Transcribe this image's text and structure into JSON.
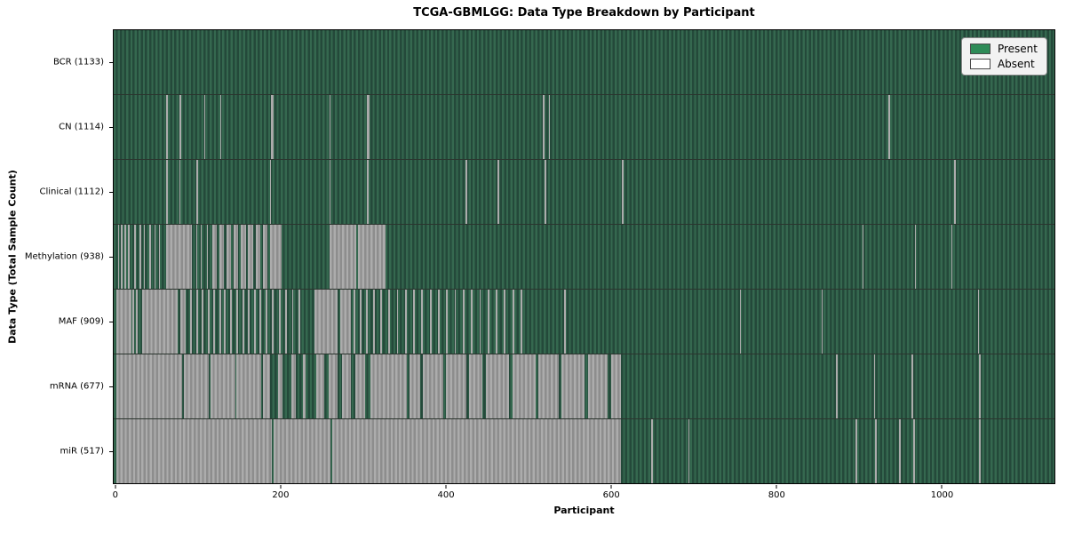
{
  "title": "TCGA-GBMLGG: Data Type Breakdown by Participant",
  "chart_data": {
    "type": "heatmap",
    "title": "TCGA-GBMLGG: Data Type Breakdown by Participant",
    "xlabel": "Participant",
    "ylabel": "Data Type (Total Sample Count)",
    "x_ticks": [
      0,
      200,
      400,
      600,
      800,
      1000
    ],
    "x_offset": 3,
    "x_domain_size": 1140,
    "n_participants": 1133,
    "grid": false,
    "legend_position": "upper right",
    "legend": [
      {
        "label": "Present",
        "color": "#2e8b57"
      },
      {
        "label": "Absent",
        "color": "#ffffff"
      }
    ],
    "colors": {
      "present_fill": "#2e8b57",
      "absent_fill": "#ffffff",
      "green_light": "#35684f",
      "green_dark": "#24493a",
      "gray_light": "#acacac",
      "gray_dark": "#8d8d8d",
      "legend_bg": "#f2f2f2"
    },
    "rows": [
      {
        "name": "bcr",
        "label": "BCR (1133)",
        "count": 1133,
        "absent": []
      },
      {
        "name": "cn",
        "label": "CN (1114)",
        "count": 1114,
        "absent": [
          [
            61,
            63
          ],
          [
            77,
            79
          ],
          [
            107,
            108
          ],
          [
            126,
            127
          ],
          [
            188,
            191
          ],
          [
            259,
            260
          ],
          [
            304,
            307
          ],
          [
            517,
            519
          ],
          [
            524,
            526
          ],
          [
            936,
            938
          ]
        ]
      },
      {
        "name": "clinical",
        "label": "Clinical (1112)",
        "count": 1112,
        "absent": [
          [
            61,
            63
          ],
          [
            77,
            78
          ],
          [
            97,
            99
          ],
          [
            186,
            188
          ],
          [
            259,
            260
          ],
          [
            304,
            306
          ],
          [
            423,
            425
          ],
          [
            462,
            464
          ],
          [
            519,
            521
          ],
          [
            613,
            615
          ],
          [
            1015,
            1017
          ]
        ]
      },
      {
        "name": "methylation",
        "label": "Methylation (938)",
        "count": 938,
        "absent": [
          [
            2,
            4
          ],
          [
            6,
            8
          ],
          [
            10,
            12
          ],
          [
            14,
            16
          ],
          [
            18,
            19
          ],
          [
            22,
            24
          ],
          [
            28,
            30
          ],
          [
            34,
            35
          ],
          [
            40,
            42
          ],
          [
            47,
            48
          ],
          [
            52,
            53
          ],
          [
            60,
            92
          ],
          [
            97,
            98
          ],
          [
            103,
            104
          ],
          [
            110,
            111
          ],
          [
            116,
            122
          ],
          [
            125,
            131
          ],
          [
            134,
            139
          ],
          [
            142,
            148
          ],
          [
            151,
            157
          ],
          [
            160,
            166
          ],
          [
            169,
            175
          ],
          [
            178,
            183
          ],
          [
            186,
            200
          ],
          [
            259,
            291
          ],
          [
            293,
            326
          ],
          [
            904,
            906
          ],
          [
            968,
            969
          ],
          [
            1012,
            1013
          ]
        ]
      },
      {
        "name": "maf",
        "label": "MAF (909)",
        "count": 909,
        "absent": [
          [
            0,
            18
          ],
          [
            20,
            22
          ],
          [
            24,
            26
          ],
          [
            31,
            75
          ],
          [
            78,
            84
          ],
          [
            90,
            92
          ],
          [
            97,
            99
          ],
          [
            104,
            106
          ],
          [
            111,
            113
          ],
          [
            118,
            120
          ],
          [
            125,
            127
          ],
          [
            131,
            133
          ],
          [
            138,
            140
          ],
          [
            146,
            148
          ],
          [
            153,
            155
          ],
          [
            160,
            162
          ],
          [
            167,
            169
          ],
          [
            174,
            176
          ],
          [
            181,
            183
          ],
          [
            189,
            191
          ],
          [
            197,
            199
          ],
          [
            205,
            207
          ],
          [
            213,
            215
          ],
          [
            221,
            223
          ],
          [
            240,
            268
          ],
          [
            271,
            284
          ],
          [
            288,
            290
          ],
          [
            295,
            297
          ],
          [
            303,
            305
          ],
          [
            311,
            313
          ],
          [
            320,
            322
          ],
          [
            330,
            332
          ],
          [
            340,
            342
          ],
          [
            350,
            352
          ],
          [
            360,
            362
          ],
          [
            370,
            372
          ],
          [
            380,
            382
          ],
          [
            390,
            392
          ],
          [
            400,
            402
          ],
          [
            410,
            412
          ],
          [
            420,
            422
          ],
          [
            430,
            432
          ],
          [
            440,
            442
          ],
          [
            450,
            452
          ],
          [
            460,
            462
          ],
          [
            470,
            472
          ],
          [
            480,
            482
          ],
          [
            490,
            492
          ],
          [
            543,
            545
          ],
          [
            756,
            757
          ],
          [
            855,
            856
          ],
          [
            1044,
            1046
          ]
        ]
      },
      {
        "name": "mrna",
        "label": "mRNA (677)",
        "count": 677,
        "absent": [
          [
            0,
            80
          ],
          [
            82,
            112
          ],
          [
            114,
            144
          ],
          [
            146,
            176
          ],
          [
            178,
            186
          ],
          [
            196,
            202
          ],
          [
            212,
            218
          ],
          [
            226,
            230
          ],
          [
            242,
            252
          ],
          [
            258,
            268
          ],
          [
            274,
            284
          ],
          [
            290,
            302
          ],
          [
            308,
            352
          ],
          [
            356,
            368
          ],
          [
            372,
            396
          ],
          [
            400,
            424
          ],
          [
            428,
            444
          ],
          [
            448,
            476
          ],
          [
            480,
            508
          ],
          [
            512,
            536
          ],
          [
            540,
            568
          ],
          [
            572,
            596
          ],
          [
            600,
            612
          ],
          [
            872,
            874
          ],
          [
            918,
            920
          ],
          [
            964,
            966
          ],
          [
            1046,
            1048
          ]
        ]
      },
      {
        "name": "mir",
        "label": "miR (517)",
        "count": 517,
        "absent": [
          [
            0,
            189
          ],
          [
            191,
            260
          ],
          [
            262,
            612
          ],
          [
            648,
            650
          ],
          [
            693,
            695
          ],
          [
            896,
            898
          ],
          [
            920,
            922
          ],
          [
            949,
            951
          ],
          [
            966,
            968
          ],
          [
            1046,
            1048
          ]
        ]
      }
    ]
  }
}
